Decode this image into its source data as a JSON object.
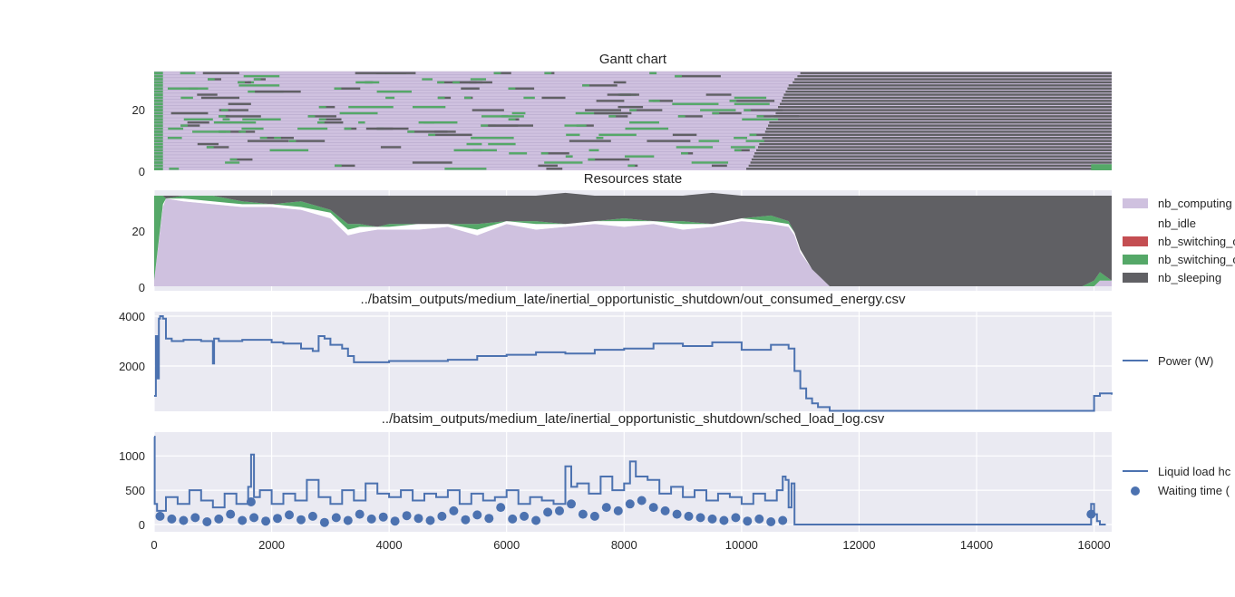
{
  "chart_data": [
    {
      "type": "gantt",
      "title": "Gantt chart",
      "x_range": [
        0,
        16300
      ],
      "ylim": [
        0,
        32
      ],
      "ytick_labels": [
        "0",
        "20"
      ],
      "grid": true,
      "colors": {
        "computing": "#cfc1df",
        "idle": "#ffffff",
        "switching_off": "#55a868",
        "sleeping": "#606064"
      },
      "sleeping_start_est": 10050,
      "lanes_sleeping_from": [
        11000,
        10950,
        10900,
        10870,
        10800,
        10780,
        10750,
        10720,
        10700,
        10680,
        10650,
        10620,
        10600,
        10580,
        10550,
        10500,
        10470,
        10450,
        10420,
        10400,
        10380,
        10350,
        10320,
        10300,
        10280,
        10250,
        10220,
        10200,
        10170,
        10150,
        10120,
        10080
      ]
    },
    {
      "type": "area",
      "title": "Resources state",
      "ylim": [
        0,
        32
      ],
      "ytick_labels": [
        "0",
        "20"
      ],
      "x": [
        0,
        150,
        200,
        500,
        1000,
        1500,
        2000,
        2500,
        3000,
        3300,
        3500,
        3800,
        4000,
        4500,
        5000,
        5500,
        6000,
        6500,
        7000,
        7500,
        8000,
        8500,
        9000,
        9500,
        10000,
        10500,
        10800,
        10900,
        11000,
        11200,
        11400,
        11500,
        11800,
        12000,
        14000,
        15800,
        16000,
        16100,
        16300
      ],
      "series": [
        {
          "name": "nb_computing",
          "values": [
            2,
            28,
            31,
            30,
            29,
            28,
            28,
            27,
            24,
            18,
            19,
            20,
            20,
            20,
            21,
            18,
            22,
            20,
            21,
            22,
            21,
            22,
            20,
            21,
            23,
            22,
            21,
            18,
            12,
            6,
            2,
            0,
            0,
            0,
            0,
            0,
            0,
            2,
            2
          ]
        },
        {
          "name": "nb_idle",
          "values": [
            0,
            1,
            0,
            1,
            1,
            1,
            1,
            1,
            2,
            2,
            2,
            1,
            1,
            2,
            1,
            2,
            1,
            2,
            1,
            1,
            2,
            1,
            2,
            1,
            1,
            1,
            1,
            1,
            1,
            0,
            0,
            0,
            0,
            0,
            0,
            0,
            0,
            0,
            0
          ]
        },
        {
          "name": "nb_switching_on",
          "values": [
            0,
            0,
            0,
            0,
            0,
            0,
            0,
            0,
            0,
            0,
            0,
            0,
            0,
            0,
            0,
            0,
            0,
            0,
            0,
            0,
            0,
            0,
            0,
            0,
            0,
            0,
            0,
            0,
            0,
            0,
            0,
            0,
            0,
            0,
            0,
            0,
            0,
            0,
            0
          ]
        },
        {
          "name": "nb_switching_off",
          "values": [
            30,
            3,
            0,
            1,
            2,
            1,
            0,
            2,
            1,
            2,
            1,
            0,
            1,
            0,
            0,
            2,
            0,
            1,
            0,
            0,
            1,
            0,
            1,
            0,
            0,
            2,
            1,
            0,
            0,
            0,
            0,
            0,
            0,
            0,
            0,
            0,
            2,
            3,
            0
          ]
        },
        {
          "name": "nb_sleeping",
          "values": [
            0,
            0,
            1,
            0,
            0,
            2,
            3,
            2,
            5,
            10,
            10,
            11,
            10,
            10,
            10,
            10,
            9,
            9,
            11,
            9,
            8,
            9,
            9,
            11,
            8,
            7,
            9,
            13,
            19,
            26,
            30,
            32,
            32,
            32,
            32,
            32,
            30,
            27,
            30
          ]
        }
      ],
      "legend": "right"
    },
    {
      "type": "line",
      "title": "../batsim_outputs/medium_late/inertial_opportunistic_shutdown/out_consumed_energy.csv",
      "ytick_labels": [
        "2000",
        "4000"
      ],
      "ylim": [
        100,
        4100
      ],
      "series": [
        {
          "name": "Power (W)",
          "x": [
            0,
            30,
            60,
            80,
            100,
            150,
            200,
            300,
            500,
            800,
            1000,
            1020,
            1100,
            1500,
            2000,
            2200,
            2500,
            2700,
            2800,
            2900,
            3000,
            3200,
            3300,
            3400,
            3500,
            4000,
            4500,
            5000,
            5500,
            6000,
            6500,
            7000,
            7500,
            8000,
            8500,
            9000,
            9500,
            10000,
            10500,
            10800,
            10900,
            11000,
            11100,
            11200,
            11300,
            11500,
            12000,
            14000,
            15800,
            15900,
            16000,
            16100,
            16300
          ],
          "values": [
            800,
            3200,
            1500,
            3900,
            4000,
            3900,
            3100,
            3000,
            3050,
            3000,
            2100,
            3100,
            3000,
            3050,
            2950,
            2900,
            2700,
            2600,
            3200,
            3100,
            2850,
            2700,
            2400,
            2150,
            2150,
            2200,
            2200,
            2250,
            2400,
            2450,
            2550,
            2500,
            2650,
            2700,
            2900,
            2800,
            2950,
            2650,
            2850,
            2700,
            1800,
            1100,
            700,
            500,
            350,
            200,
            200,
            200,
            200,
            200,
            800,
            900,
            850
          ]
        }
      ],
      "legend": "right"
    },
    {
      "type": "line",
      "title": "../batsim_outputs/medium_late/inertial_opportunistic_shutdown/sched_load_log.csv",
      "xtick_labels": [
        "0",
        "2000",
        "4000",
        "6000",
        "8000",
        "10000",
        "12000",
        "14000",
        "16000"
      ],
      "ytick_labels": [
        "0",
        "500",
        "1000"
      ],
      "x_range": [
        0,
        16300
      ],
      "ylim": [
        -50,
        1300
      ],
      "series": [
        {
          "name": "Liquid load hc",
          "x": [
            0,
            10,
            50,
            200,
            400,
            600,
            800,
            1000,
            1200,
            1400,
            1600,
            1650,
            1700,
            1800,
            2000,
            2200,
            2400,
            2600,
            2800,
            3000,
            3200,
            3400,
            3600,
            3800,
            4000,
            4200,
            4400,
            4600,
            4800,
            5000,
            5200,
            5400,
            5600,
            5800,
            6000,
            6200,
            6400,
            6600,
            6800,
            7000,
            7100,
            7200,
            7400,
            7600,
            7800,
            8000,
            8100,
            8200,
            8400,
            8600,
            8800,
            9000,
            9200,
            9400,
            9600,
            9800,
            10000,
            10200,
            10400,
            10600,
            10700,
            10750,
            10800,
            10850,
            10900,
            12000,
            14000,
            15900,
            15950,
            16000,
            16050,
            16100,
            16200
          ],
          "values": [
            1280,
            300,
            200,
            400,
            300,
            500,
            350,
            250,
            450,
            300,
            550,
            1020,
            400,
            500,
            300,
            450,
            350,
            650,
            400,
            300,
            500,
            350,
            600,
            450,
            400,
            500,
            350,
            450,
            400,
            500,
            300,
            450,
            350,
            400,
            500,
            300,
            400,
            350,
            300,
            850,
            550,
            600,
            450,
            700,
            500,
            600,
            920,
            700,
            650,
            450,
            550,
            400,
            500,
            350,
            450,
            400,
            300,
            450,
            350,
            500,
            700,
            650,
            250,
            600,
            0,
            0,
            0,
            0,
            300,
            150,
            50,
            0,
            0
          ]
        },
        {
          "name": "Waiting time (",
          "type": "scatter",
          "x": [
            100,
            300,
            500,
            700,
            900,
            1100,
            1300,
            1500,
            1650,
            1700,
            1900,
            2100,
            2300,
            2500,
            2700,
            2900,
            3100,
            3300,
            3500,
            3700,
            3900,
            4100,
            4300,
            4500,
            4700,
            4900,
            5100,
            5300,
            5500,
            5700,
            5900,
            6100,
            6300,
            6500,
            6700,
            6900,
            7100,
            7300,
            7500,
            7700,
            7900,
            8100,
            8300,
            8500,
            8700,
            8900,
            9100,
            9300,
            9500,
            9700,
            9900,
            10100,
            10300,
            10500,
            10700,
            15950
          ],
          "values": [
            120,
            80,
            60,
            100,
            40,
            80,
            150,
            60,
            330,
            100,
            50,
            90,
            140,
            70,
            120,
            30,
            100,
            60,
            150,
            80,
            110,
            50,
            130,
            90,
            60,
            120,
            200,
            70,
            140,
            90,
            250,
            80,
            120,
            60,
            180,
            200,
            300,
            150,
            120,
            250,
            200,
            300,
            350,
            250,
            200,
            150,
            120,
            100,
            80,
            60,
            100,
            50,
            80,
            40,
            60,
            150
          ]
        }
      ],
      "legend": "right"
    }
  ]
}
